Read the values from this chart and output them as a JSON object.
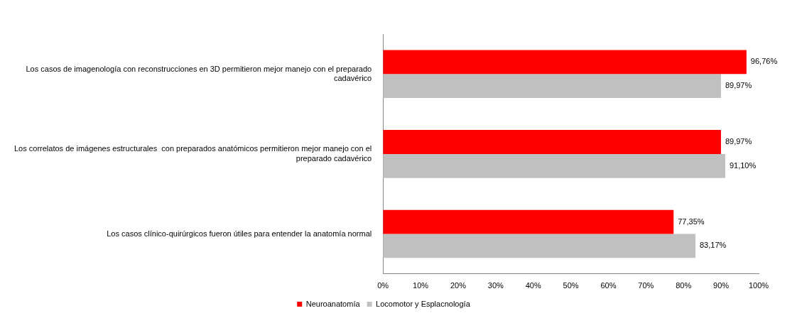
{
  "chart_data": {
    "type": "bar",
    "orientation": "horizontal",
    "categories": [
      "Los casos de imagenología con reconstrucciones en 3D permitieron mejor manejo con el preparado cadavérico",
      "Los correlatos de imágenes estructurales  con preparados anatómicos permitieron mejor manejo con el preparado cadavérico",
      "Los casos clínico-quirúrgicos fueron útiles para entender la anatomía normal"
    ],
    "series": [
      {
        "name": "Neuroanatomía",
        "color": "#ff0000",
        "values": [
          96.76,
          89.97,
          77.35
        ],
        "value_labels": [
          "96,76%",
          "89,97%",
          "77,35%"
        ]
      },
      {
        "name": "Locomotor y Esplacnología",
        "color": "#c0c0c0",
        "values": [
          89.97,
          91.1,
          83.17
        ],
        "value_labels": [
          "89,97%",
          "91,10%",
          "83,17%"
        ]
      }
    ],
    "xlim": [
      0,
      100
    ],
    "xticks": [
      {
        "value": 0,
        "label": "0%"
      },
      {
        "value": 10,
        "label": "10%"
      },
      {
        "value": 20,
        "label": "20%"
      },
      {
        "value": 30,
        "label": "30%"
      },
      {
        "value": 40,
        "label": "40%"
      },
      {
        "value": 50,
        "label": "50%"
      },
      {
        "value": 60,
        "label": "60%"
      },
      {
        "value": 70,
        "label": "70%"
      },
      {
        "value": 80,
        "label": "80%"
      },
      {
        "value": 90,
        "label": "90%"
      },
      {
        "value": 100,
        "label": "100%"
      }
    ],
    "grid": false,
    "legend": "bottom"
  }
}
